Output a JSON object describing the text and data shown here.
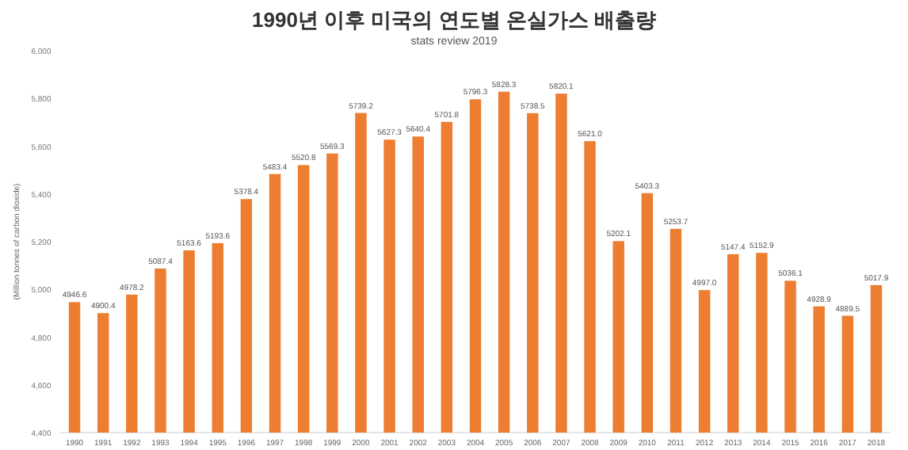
{
  "chart_data": {
    "type": "bar",
    "title": "1990년 이후 미국의 연도별 온실가스 배출량",
    "subtitle": "stats review 2019",
    "ylabel": "(Million tonnes of carbon dioxide)",
    "categories": [
      "1990",
      "1991",
      "1992",
      "1993",
      "1994",
      "1995",
      "1996",
      "1997",
      "1998",
      "1999",
      "2000",
      "2001",
      "2002",
      "2003",
      "2004",
      "2005",
      "2006",
      "2007",
      "2008",
      "2009",
      "2010",
      "2011",
      "2012",
      "2013",
      "2014",
      "2015",
      "2016",
      "2017",
      "2018"
    ],
    "values": [
      4946.6,
      4900.4,
      4978.2,
      5087.4,
      5163.6,
      5193.6,
      5378.4,
      5483.4,
      5520.8,
      5569.3,
      5739.2,
      5627.3,
      5640.4,
      5701.8,
      5796.3,
      5828.3,
      5738.5,
      5820.1,
      5621.0,
      5202.1,
      5403.3,
      5253.7,
      4997.0,
      5147.4,
      5152.9,
      5036.1,
      4928.9,
      4889.5,
      5017.9
    ],
    "value_labels": [
      "4946.6",
      "4900.4",
      "4978.2",
      "5087.4",
      "5163.6",
      "5193.6",
      "5378.4",
      "5483.4",
      "5520.8",
      "5569.3",
      "5739.2",
      "5627.3",
      "5640.4",
      "5701.8",
      "5796.3",
      "5828.3",
      "5738.5",
      "5820.1",
      "5621.0",
      "5202.1",
      "5403.3",
      "5253.7",
      "4997.0",
      "5147.4",
      "5152.9",
      "5036.1",
      "4928.9",
      "4889.5",
      "5017.9"
    ],
    "color": "#ed7d31",
    "ylim": [
      4400,
      6000
    ],
    "yticks": [
      {
        "value": 4400,
        "label": "4,400"
      },
      {
        "value": 4600,
        "label": "4,600"
      },
      {
        "value": 4800,
        "label": "4,800"
      },
      {
        "value": 5000,
        "label": "5,000"
      },
      {
        "value": 5200,
        "label": "5,200"
      },
      {
        "value": 5400,
        "label": "5,400"
      },
      {
        "value": 5600,
        "label": "5,600"
      },
      {
        "value": 5800,
        "label": "5,800"
      },
      {
        "value": 6000,
        "label": "6,000"
      }
    ],
    "grid": false
  }
}
